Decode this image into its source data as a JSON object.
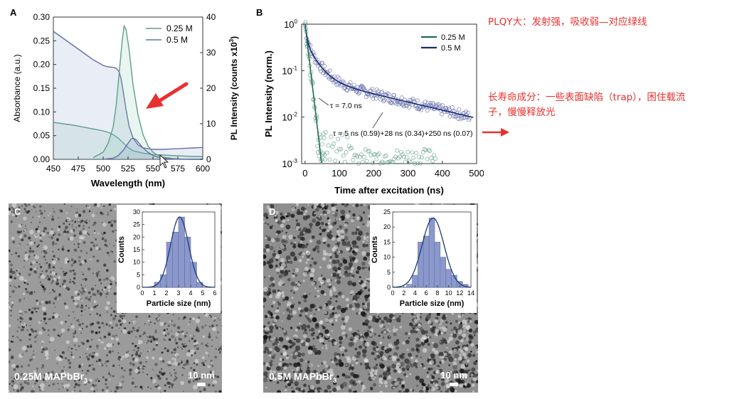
{
  "annotations": {
    "top_note": "PLQY大：发射强，吸收弱—对应绿线",
    "lifetime_note_line1": "长寿命成分：一些表面缺陷（trap），困住载流",
    "lifetime_note_line2": "子，慢慢释放光"
  },
  "colors": {
    "series_025": "#5f9e8a",
    "series_05": "#6670a8",
    "fit_025": "#1f6b52",
    "fit_05": "#1b2a78",
    "annotation_red": "#e8312e",
    "hist_bar": "#8a98cc"
  },
  "chart_data": [
    {
      "id": "A",
      "panel_label": "A",
      "type": "line",
      "xlabel": "Wavelength (nm)",
      "ylabel_left": "Absorbance (a.u.)",
      "ylabel_right": "PL Intensity (counts x10",
      "ylabel_right_sup": "3",
      "ylabel_right_close": ")",
      "xlim": [
        450,
        600
      ],
      "ylim_left": [
        0,
        0.3
      ],
      "ylim_right": [
        0,
        40
      ],
      "xticks": [
        "450",
        "475",
        "500",
        "525",
        "550",
        "575",
        "600"
      ],
      "yticks_left": [
        "0.00",
        "0.05",
        "0.10",
        "0.15",
        "0.20",
        "0.25",
        "0.30"
      ],
      "yticks_right": [
        "0",
        "10",
        "20",
        "30",
        "40"
      ],
      "legend": [
        "0.25 M",
        "0.5 M"
      ],
      "series": [
        {
          "name": "0.25 M",
          "kind": "absorbance",
          "axis": "left",
          "x": [
            450,
            460,
            470,
            480,
            490,
            500,
            505,
            510,
            515,
            520,
            525,
            530,
            540,
            550,
            560,
            570,
            580,
            590,
            600
          ],
          "y": [
            0.078,
            0.075,
            0.072,
            0.068,
            0.064,
            0.06,
            0.057,
            0.052,
            0.045,
            0.035,
            0.025,
            0.018,
            0.013,
            0.01,
            0.009,
            0.008,
            0.007,
            0.006,
            0.006
          ]
        },
        {
          "name": "0.5 M",
          "kind": "absorbance",
          "axis": "left",
          "x": [
            450,
            460,
            470,
            480,
            490,
            500,
            505,
            510,
            513,
            516,
            518,
            520,
            523,
            526,
            530,
            535,
            540,
            550,
            560,
            570,
            580,
            590,
            600
          ],
          "y": [
            0.27,
            0.255,
            0.24,
            0.225,
            0.21,
            0.198,
            0.195,
            0.194,
            0.192,
            0.185,
            0.17,
            0.145,
            0.105,
            0.07,
            0.045,
            0.03,
            0.024,
            0.021,
            0.021,
            0.022,
            0.023,
            0.024,
            0.025
          ]
        },
        {
          "name": "0.25 M",
          "kind": "PL",
          "axis": "right",
          "x": [
            490,
            500,
            505,
            510,
            513,
            516,
            519,
            521,
            523,
            526,
            530,
            535,
            540,
            545,
            550,
            555,
            560,
            570,
            580,
            590,
            600
          ],
          "y": [
            0.5,
            2,
            4.5,
            9,
            15,
            24,
            33,
            37.5,
            36.5,
            31,
            21,
            12.5,
            7,
            3.8,
            2,
            1.1,
            0.6,
            0.2,
            0.05,
            0,
            0
          ]
        },
        {
          "name": "0.5 M",
          "kind": "PL",
          "axis": "right",
          "x": [
            500,
            510,
            515,
            520,
            525,
            528,
            530,
            533,
            537,
            540,
            545,
            550,
            555,
            560,
            570,
            580,
            600
          ],
          "y": [
            0,
            0.3,
            1,
            2.5,
            4.5,
            5.7,
            6,
            5.5,
            4.2,
            3.2,
            2,
            1.1,
            0.6,
            0.3,
            0.1,
            0,
            0
          ]
        }
      ]
    },
    {
      "id": "B",
      "panel_label": "B",
      "type": "scatter",
      "xlabel": "Time after excitation (ns)",
      "ylabel": "PL Intensity (norm.)",
      "yscale": "log",
      "xlim": [
        -10,
        500
      ],
      "ylim": [
        0.001,
        1
      ],
      "xticks": [
        "0",
        "100",
        "200",
        "300",
        "400",
        "500"
      ],
      "yticks": [
        "10",
        "10",
        "10",
        "10"
      ],
      "ytick_exponents": [
        "-3",
        "-2",
        "-1",
        "0"
      ],
      "legend": [
        "0.25 M",
        "0.5 M"
      ],
      "annotations": [
        {
          "text": "τ = 7.0 ns"
        },
        {
          "text": "τ = 5 ns (0.59)+28 ns (0.34)+250 ns (0.07)"
        }
      ],
      "fits": [
        {
          "name": "0.25 M",
          "model": "single-exponential",
          "tau_ns": 7.0
        },
        {
          "name": "0.5 M",
          "model": "tri-exponential",
          "tau_ns": [
            5,
            28,
            250
          ],
          "weights": [
            0.59,
            0.34,
            0.07
          ]
        }
      ]
    },
    {
      "id": "C-hist",
      "panel_label": "C",
      "type": "bar",
      "xlabel": "Particle size (nm)",
      "ylabel": "Counts",
      "xlim": [
        0,
        6
      ],
      "ylim": [
        0,
        30
      ],
      "xticks": [
        "0",
        "1",
        "2",
        "3",
        "4",
        "5",
        "6"
      ],
      "yticks": [
        "0",
        "5",
        "10",
        "15",
        "20",
        "25",
        "30"
      ],
      "bin_centers": [
        1.25,
        1.75,
        2.25,
        2.75,
        3.25,
        3.75,
        4.25,
        4.75
      ],
      "values": [
        2,
        5,
        18,
        22,
        28,
        20,
        10,
        2
      ],
      "image_caption": "0.25M MAPbBr",
      "image_caption_sub": "3",
      "scale_bar": "10 nm"
    },
    {
      "id": "D-hist",
      "panel_label": "D",
      "type": "bar",
      "xlabel": "Particle size (nm)",
      "ylabel": "Counts",
      "xlim": [
        0,
        14
      ],
      "ylim": [
        0,
        25
      ],
      "xticks": [
        "0",
        "2",
        "4",
        "6",
        "8",
        "10",
        "12",
        "14"
      ],
      "yticks": [
        "0",
        "5",
        "10",
        "15",
        "20",
        "25"
      ],
      "bin_centers": [
        3,
        4,
        5,
        6,
        7,
        8,
        9,
        10,
        11,
        12,
        13
      ],
      "values": [
        1,
        4,
        15,
        17,
        23,
        15,
        10,
        6,
        4,
        2,
        1
      ],
      "image_caption": "0.5M MAPbBr",
      "image_caption_sub": "3",
      "scale_bar": "10 nm"
    }
  ]
}
